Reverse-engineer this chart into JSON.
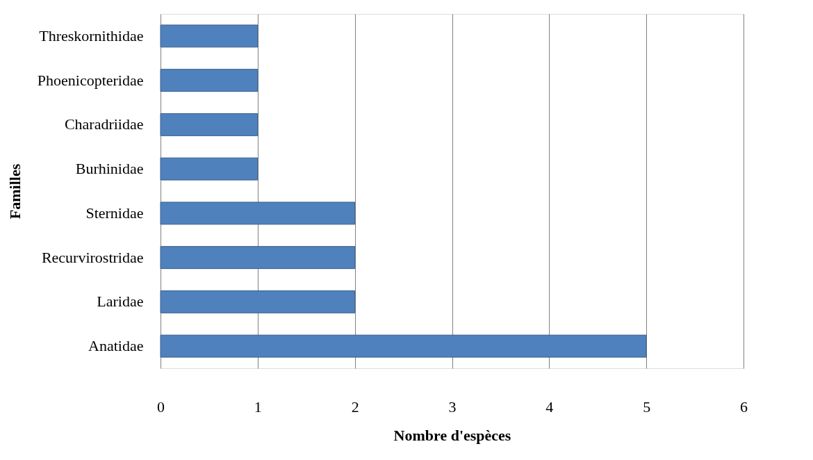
{
  "chart_data": {
    "type": "bar",
    "orientation": "horizontal",
    "xlabel": "Nombre d'espèces",
    "ylabel": "Familles",
    "categories": [
      "Threskornithidae",
      "Phoenicopteridae",
      "Charadriidae",
      "Burhinidae",
      "Sternidae",
      "Recurvirostridae",
      "Laridae",
      "Anatidae"
    ],
    "values": [
      1,
      1,
      1,
      1,
      2,
      2,
      2,
      5
    ],
    "color": "#4f81bd",
    "xlim": [
      0,
      6
    ],
    "xticks": [
      0,
      1,
      2,
      3,
      4,
      5,
      6
    ],
    "grid": "x"
  }
}
